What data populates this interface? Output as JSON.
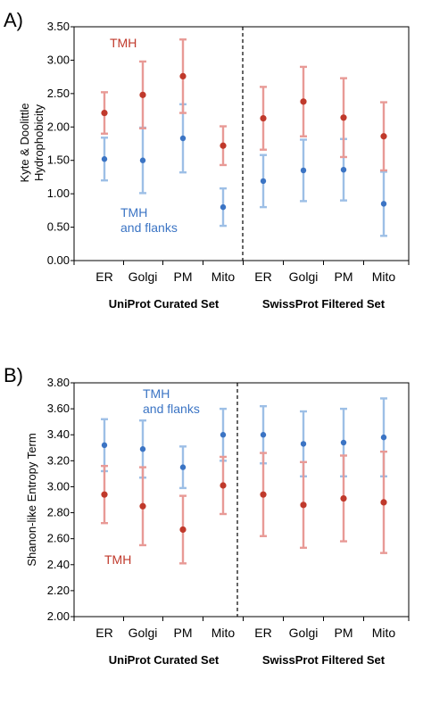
{
  "colors": {
    "tmh": "#c0392b",
    "tmh_err": "#e89a96",
    "flank": "#3b74c4",
    "flank_err": "#9dbfe6",
    "axis": "#000000"
  },
  "chart_data": [
    {
      "type": "scatter",
      "panel": "A)",
      "ylabel": [
        "Kyte & Doolittle",
        "Hydrophobicity"
      ],
      "ylim": [
        0,
        3.5
      ],
      "yticks": [
        "0.00",
        "0.50",
        "1.00",
        "1.50",
        "2.00",
        "2.50",
        "3.00",
        "3.50"
      ],
      "categories": [
        "ER",
        "Golgi",
        "PM",
        "Mito",
        "ER",
        "Golgi",
        "PM",
        "Mito"
      ],
      "groups": [
        "UniProt Curated Set",
        "SwissProt Filtered Set"
      ],
      "annotations": {
        "tmh": "TMH",
        "flank": [
          "TMH",
          "and flanks"
        ]
      },
      "series": [
        {
          "key": "tmh",
          "values": [
            2.21,
            2.48,
            2.76,
            1.72,
            2.13,
            2.38,
            2.14,
            1.86
          ],
          "errors": [
            0.31,
            0.5,
            0.55,
            0.29,
            0.47,
            0.52,
            0.59,
            0.51
          ]
        },
        {
          "key": "flank",
          "values": [
            1.52,
            1.5,
            1.83,
            0.8,
            1.19,
            1.35,
            1.36,
            0.85
          ],
          "errors": [
            0.32,
            0.49,
            0.51,
            0.28,
            0.39,
            0.46,
            0.46,
            0.48
          ]
        }
      ]
    },
    {
      "type": "scatter",
      "panel": "B)",
      "ylabel": [
        "Shanon-like Entropy Term"
      ],
      "ylim": [
        2.0,
        3.8
      ],
      "yticks": [
        "2.00",
        "2.20",
        "2.40",
        "2.60",
        "2.80",
        "3.00",
        "3.20",
        "3.40",
        "3.60",
        "3.80"
      ],
      "categories": [
        "ER",
        "Golgi",
        "PM",
        "Mito",
        "ER",
        "Golgi",
        "PM",
        "Mito"
      ],
      "groups": [
        "UniProt Curated Set",
        "SwissProt Filtered Set"
      ],
      "annotations": {
        "tmh": "TMH",
        "flank": [
          "TMH",
          "and flanks"
        ]
      },
      "series": [
        {
          "key": "tmh",
          "values": [
            2.94,
            2.85,
            2.67,
            3.01,
            2.94,
            2.86,
            2.91,
            2.88
          ],
          "errors": [
            0.22,
            0.3,
            0.26,
            0.22,
            0.32,
            0.33,
            0.33,
            0.39
          ]
        },
        {
          "key": "flank",
          "values": [
            3.32,
            3.29,
            3.15,
            3.4,
            3.4,
            3.33,
            3.34,
            3.38
          ],
          "errors": [
            0.2,
            0.22,
            0.16,
            0.2,
            0.22,
            0.25,
            0.26,
            0.3
          ]
        }
      ]
    }
  ]
}
